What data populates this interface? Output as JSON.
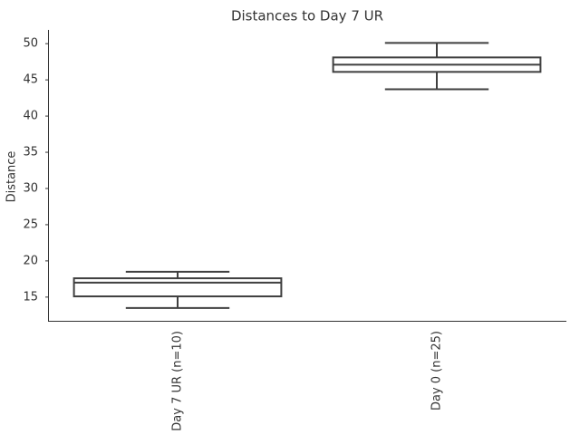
{
  "chart_data": {
    "type": "box",
    "title": "Distances to Day 7 UR",
    "ylabel": "Distance",
    "categories": [
      "Day 7 UR (n=10)",
      "Day 0 (n=25)"
    ],
    "boxes": [
      {
        "min": 13.5,
        "q1": 15.1,
        "median": 17.0,
        "q3": 17.6,
        "max": 18.5
      },
      {
        "min": 43.7,
        "q1": 46.1,
        "median": 47.1,
        "q3": 48.1,
        "max": 50.1
      }
    ],
    "color": "#3f3f3f",
    "ylim": [
      11.6,
      51.9
    ],
    "yticks": [
      15,
      20,
      25,
      30,
      35,
      40,
      45,
      50
    ],
    "grid": false
  }
}
